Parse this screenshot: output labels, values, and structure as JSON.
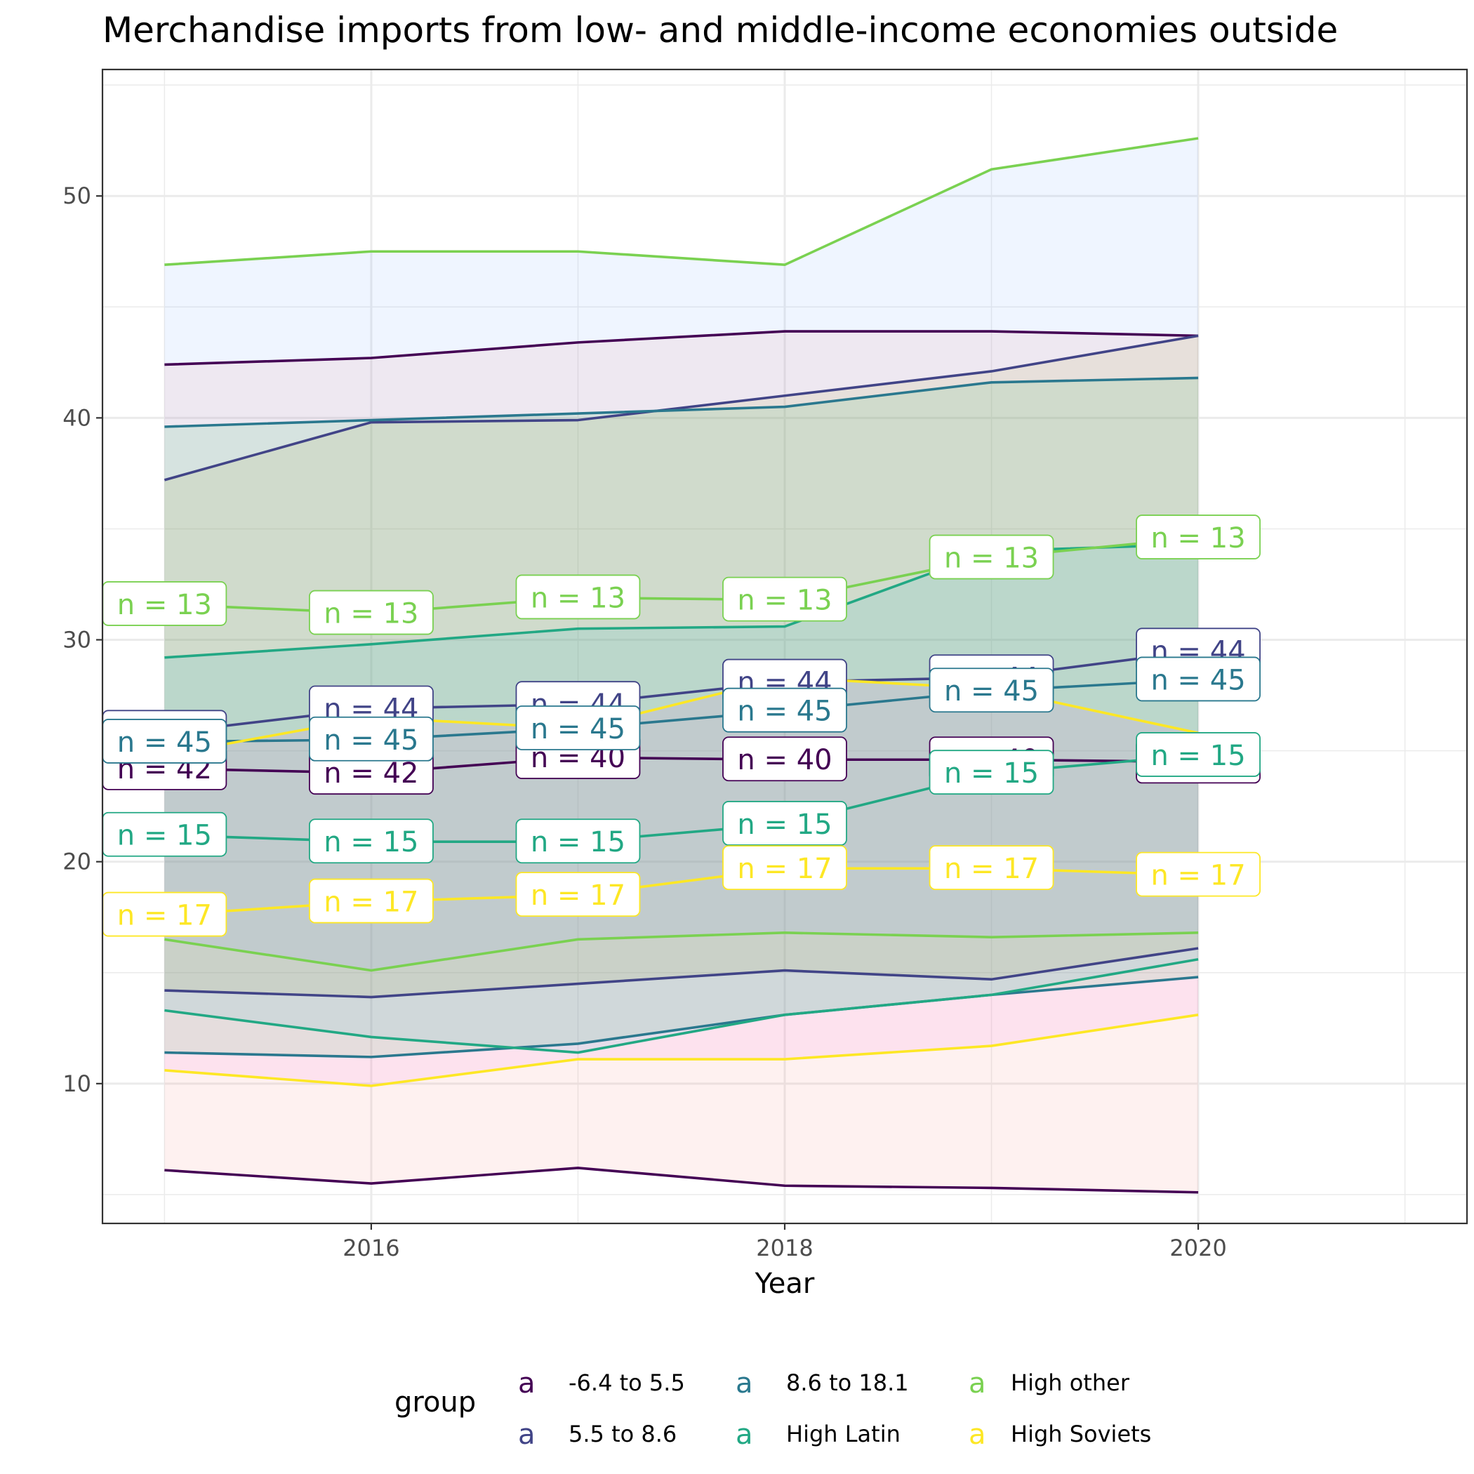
{
  "chart_data": {
    "type": "area",
    "title": "Merchandise imports from low- and middle-income economies outside",
    "xlabel": "Year",
    "ylabel": "",
    "xlim": [
      2014.7,
      2021.3
    ],
    "ylim": [
      3.7,
      55.7
    ],
    "x_ticks": [
      2016,
      2018,
      2020
    ],
    "y_ticks": [
      10,
      20,
      30,
      40,
      50
    ],
    "grid": true,
    "legend": {
      "title": "group",
      "position": "bottom",
      "key_glyph": "a",
      "items": [
        {
          "label": "-6.4 to 5.5",
          "color": "#440154"
        },
        {
          "label": "5.5 to 8.6",
          "color": "#414487"
        },
        {
          "label": "8.6 to 18.1",
          "color": "#2a788e"
        },
        {
          "label": "High Latin",
          "color": "#22a884"
        },
        {
          "label": "High other",
          "color": "#7ad151"
        },
        {
          "label": "High Soviets",
          "color": "#fde725"
        }
      ]
    },
    "x": [
      2015,
      2016,
      2017,
      2018,
      2019,
      2020
    ],
    "series": [
      {
        "name": "-6.4 to 5.5",
        "color": "#440154",
        "fill": "#f8766d",
        "n": 42,
        "upper": [
          42.4,
          42.7,
          43.4,
          43.9,
          43.9,
          43.7
        ],
        "mean": [
          24.2,
          24.0,
          24.7,
          24.6,
          24.6,
          24.5
        ],
        "lower": [
          6.1,
          5.5,
          6.2,
          5.4,
          5.3,
          5.1
        ],
        "n_labels": [
          "n = 42",
          "n = 42",
          "n = 40",
          "n = 40",
          "n = 40",
          "n = 40"
        ]
      },
      {
        "name": "5.5 to 8.6",
        "color": "#414487",
        "fill": "#b79f00",
        "n": 44,
        "upper": [
          37.2,
          39.8,
          39.9,
          41.0,
          42.1,
          43.7
        ],
        "mean": [
          25.8,
          26.9,
          27.1,
          28.1,
          28.3,
          29.5
        ],
        "lower": [
          14.2,
          13.9,
          14.5,
          15.1,
          14.7,
          16.1
        ],
        "n_labels": [
          "n = 44",
          "n = 44",
          "n = 44",
          "n = 44",
          "n = 44",
          "n = 44"
        ]
      },
      {
        "name": "8.6 to 18.1",
        "color": "#2a788e",
        "fill": "#00ba38",
        "n": 45,
        "upper": [
          39.6,
          39.9,
          40.2,
          40.5,
          41.6,
          41.8
        ],
        "mean": [
          25.4,
          25.5,
          26.0,
          26.8,
          27.7,
          28.2
        ],
        "lower": [
          11.4,
          11.2,
          11.8,
          13.1,
          14.0,
          14.8
        ],
        "n_labels": [
          "n = 45",
          "n = 45",
          "n = 45",
          "n = 45",
          "n = 45",
          "n = 45"
        ]
      },
      {
        "name": "High Latin",
        "color": "#22a884",
        "fill": "#00bfc4",
        "n": 15,
        "upper": [
          29.2,
          29.8,
          30.5,
          30.6,
          34.0,
          34.3
        ],
        "mean": [
          21.2,
          20.9,
          20.9,
          21.7,
          24.0,
          24.8
        ],
        "lower": [
          13.3,
          12.1,
          11.4,
          13.1,
          14.0,
          15.6
        ],
        "n_labels": [
          "n = 15",
          "n = 15",
          "n = 15",
          "n = 15",
          "n = 15",
          "n = 15"
        ]
      },
      {
        "name": "High other",
        "color": "#7ad151",
        "fill": "#619cff",
        "n": 13,
        "upper": [
          46.9,
          47.5,
          47.5,
          46.9,
          51.2,
          52.6
        ],
        "mean": [
          31.6,
          31.2,
          31.9,
          31.8,
          33.7,
          34.6
        ],
        "lower": [
          16.5,
          15.1,
          16.5,
          16.8,
          16.6,
          16.8
        ],
        "n_labels": [
          "n = 13",
          "n = 13",
          "n = 13",
          "n = 13",
          "n = 13",
          "n = 13"
        ]
      },
      {
        "name": "High Soviets",
        "color": "#fde725",
        "fill": "#f564e3",
        "n": 17,
        "upper": [
          24.8,
          26.5,
          26.0,
          28.3,
          27.8,
          25.8
        ],
        "mean": [
          17.6,
          18.2,
          18.5,
          19.7,
          19.7,
          19.4
        ],
        "lower": [
          10.6,
          9.9,
          11.1,
          11.1,
          11.7,
          13.1
        ],
        "n_labels": [
          "n = 17",
          "n = 17",
          "n = 17",
          "n = 17",
          "n = 17",
          "n = 17"
        ]
      }
    ]
  }
}
